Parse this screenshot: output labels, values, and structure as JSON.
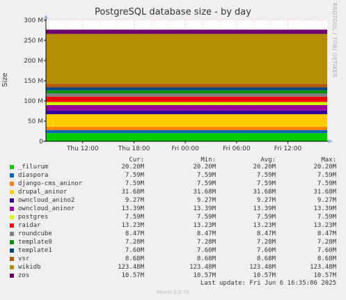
{
  "side_label": "RRDTOOL / TOBI OETIKER",
  "legend_headers": {
    "cur": "Cur:",
    "min": "Min:",
    "avg": "Avg:",
    "max": "Max:"
  },
  "last_update": "Last update: Fri Jun  6 16:35:06 2025",
  "munin_version": "Munin 2.0.73",
  "chart_data": {
    "type": "area",
    "title": "PostgreSQL database size - by day",
    "ylabel": "Size",
    "ylim": [
      0,
      300
    ],
    "y_ticks": [
      0,
      50,
      100,
      150,
      200,
      250,
      300
    ],
    "y_tick_labels": [
      "0",
      "50 M",
      "100 M",
      "150 M",
      "200 M",
      "250 M",
      "300 M"
    ],
    "x_tick_labels": [
      "Thu 12:00",
      "Thu 18:00",
      "Fri 00:00",
      "Fri 06:00",
      "Fri 12:00"
    ],
    "x_range_hours": [
      7.7,
      40.6
    ],
    "x_ticks_hours": [
      12,
      18,
      24,
      30,
      36
    ],
    "grid": true,
    "stacked": true,
    "series": [
      {
        "name": "_filurum",
        "color": "#00cc00",
        "cur": "20.20M",
        "min": "20.20M",
        "avg": "20.20M",
        "max": "20.20M",
        "value": 20.2
      },
      {
        "name": "diaspora",
        "color": "#0066b3",
        "cur": "7.59M",
        "min": "7.59M",
        "avg": "7.59M",
        "max": "7.59M",
        "value": 7.59
      },
      {
        "name": "django-cms_aninor",
        "color": "#ff8000",
        "cur": "7.59M",
        "min": "7.59M",
        "avg": "7.59M",
        "max": "7.59M",
        "value": 7.59
      },
      {
        "name": "drupal_aninor",
        "color": "#ffcc00",
        "cur": "31.68M",
        "min": "31.68M",
        "avg": "31.68M",
        "max": "31.68M",
        "value": 31.68
      },
      {
        "name": "owncloud_anino2",
        "color": "#330099",
        "cur": "9.27M",
        "min": "9.27M",
        "avg": "9.27M",
        "max": "9.27M",
        "value": 9.27
      },
      {
        "name": "owncloud_aninor",
        "color": "#990099",
        "cur": "13.39M",
        "min": "13.39M",
        "avg": "13.39M",
        "max": "13.39M",
        "value": 13.39
      },
      {
        "name": "postgres",
        "color": "#ccff00",
        "cur": "7.59M",
        "min": "7.59M",
        "avg": "7.59M",
        "max": "7.59M",
        "value": 7.59
      },
      {
        "name": "raidar",
        "color": "#ff0000",
        "cur": "13.23M",
        "min": "13.23M",
        "avg": "13.23M",
        "max": "13.23M",
        "value": 13.23
      },
      {
        "name": "roundcube",
        "color": "#808080",
        "cur": "8.47M",
        "min": "8.47M",
        "avg": "8.47M",
        "max": "8.47M",
        "value": 8.47
      },
      {
        "name": "template0",
        "color": "#008f00",
        "cur": "7.28M",
        "min": "7.28M",
        "avg": "7.28M",
        "max": "7.28M",
        "value": 7.28
      },
      {
        "name": "template1",
        "color": "#00487d",
        "cur": "7.60M",
        "min": "7.60M",
        "avg": "7.60M",
        "max": "7.60M",
        "value": 7.6
      },
      {
        "name": "vsr",
        "color": "#b35a00",
        "cur": "8.68M",
        "min": "8.68M",
        "avg": "8.68M",
        "max": "8.68M",
        "value": 8.68
      },
      {
        "name": "wikidb",
        "color": "#b38f00",
        "cur": "123.48M",
        "min": "123.48M",
        "avg": "123.48M",
        "max": "123.48M",
        "value": 123.48
      },
      {
        "name": "zos",
        "color": "#6b006b",
        "cur": "10.57M",
        "min": "10.57M",
        "avg": "10.57M",
        "max": "10.57M",
        "value": 10.57
      }
    ]
  }
}
